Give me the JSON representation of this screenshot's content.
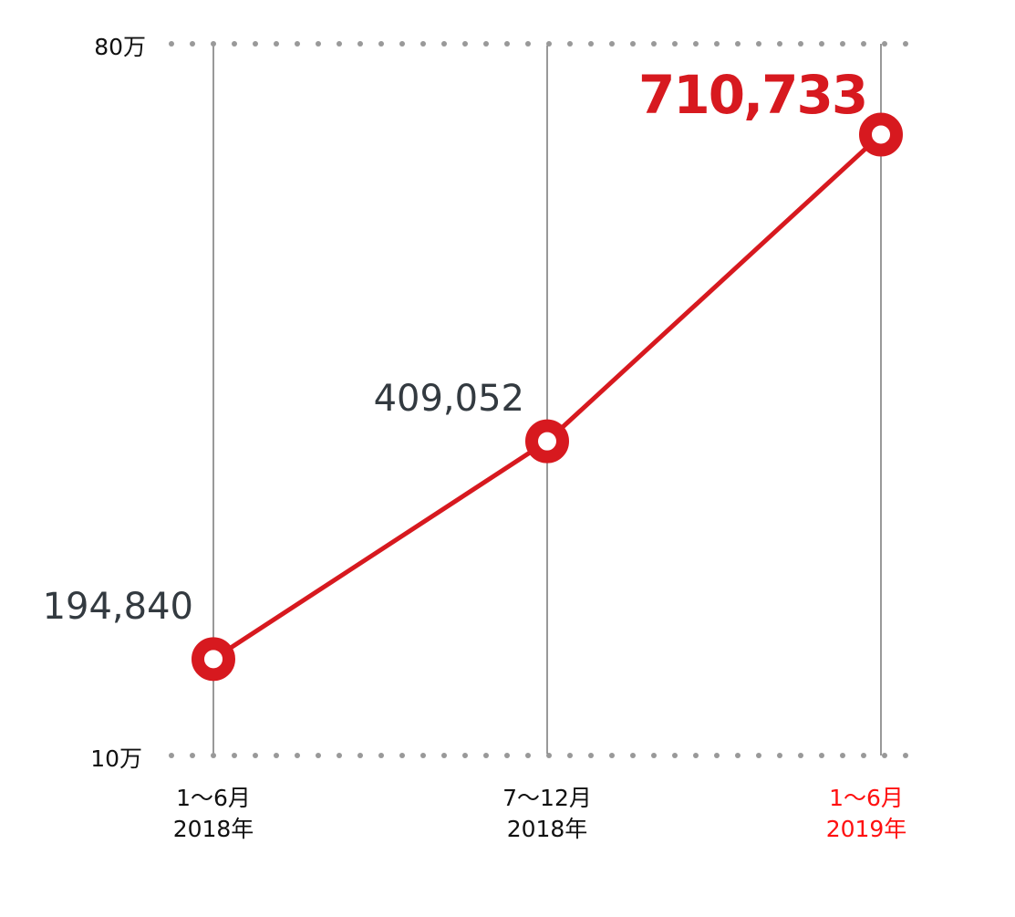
{
  "chart_data": {
    "type": "line",
    "categories": [
      [
        "1〜6月",
        "2018年"
      ],
      [
        "7〜12月",
        "2018年"
      ],
      [
        "1〜6月",
        "2019年"
      ]
    ],
    "values": [
      194840,
      409052,
      710733
    ],
    "data_labels": [
      "194,840",
      "409,052",
      "710,733"
    ],
    "y_ticks": [
      {
        "value": 800000,
        "label": "80万"
      },
      {
        "value": 100000,
        "label": "10万"
      }
    ],
    "ylim": [
      100000,
      800000
    ],
    "grid": "dotted horizontal at top and bottom ticks; vertical line per category",
    "colors": {
      "line": "#d7191f",
      "highlight_text": "#ff1010",
      "label_text": "#333a40",
      "axis_text": "#111111",
      "grid_dots": "#999999"
    }
  }
}
